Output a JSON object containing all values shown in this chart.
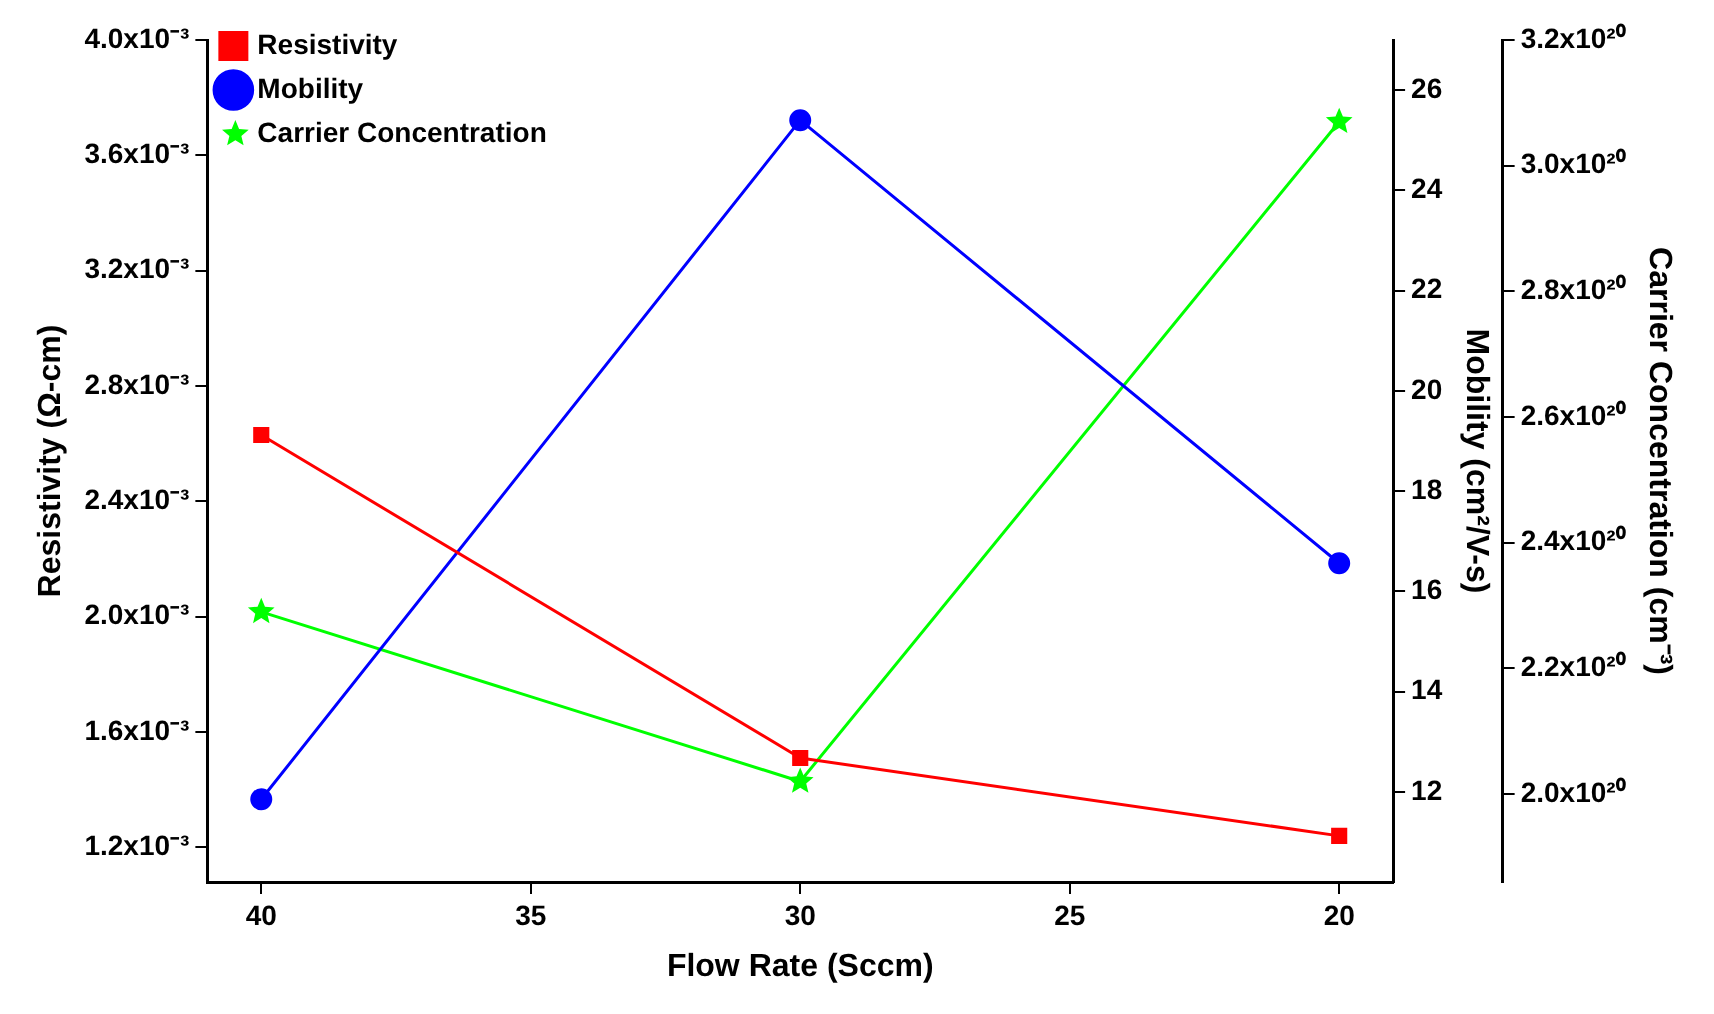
{
  "chart_data": {
    "type": "line",
    "xlabel": "Flow Rate (Sccm)",
    "ylabel": "Resistivity (Ω-cm)",
    "y2label": "Mobility (cm²/V-s)",
    "y3label": "Carrier Concentration (cm⁻³)",
    "x": [
      40,
      30,
      20
    ],
    "series": [
      {
        "name": "Resistivity",
        "color": "#ff0000",
        "marker": "square",
        "values": [
          0.00263,
          0.00151,
          0.00124
        ]
      },
      {
        "name": "Mobility",
        "color": "#0000ff",
        "marker": "circle",
        "axis": "y2",
        "values": [
          11.85,
          25.4,
          16.56
        ]
      },
      {
        "name": "Carrier Concentration",
        "color": "#00ff00",
        "marker": "star",
        "axis": "y3",
        "values": [
          2.29e+20,
          2.02e+20,
          3.07e+20
        ]
      }
    ],
    "xlim": [
      41,
      19
    ],
    "xticks": [
      40,
      35,
      30,
      25,
      20
    ],
    "ylim": [
      0.00108,
      0.004
    ],
    "yticks": [
      {
        "value": 0.0012,
        "label": "1.2x10⁻³"
      },
      {
        "value": 0.0016,
        "label": "1.6x10⁻³"
      },
      {
        "value": 0.002,
        "label": "2.0x10⁻³"
      },
      {
        "value": 0.0024,
        "label": "2.4x10⁻³"
      },
      {
        "value": 0.0028,
        "label": "2.8x10⁻³"
      },
      {
        "value": 0.0032,
        "label": "3.2x10⁻³"
      },
      {
        "value": 0.0036,
        "label": "3.6x10⁻³"
      },
      {
        "value": 0.004,
        "label": "4.0x10⁻³"
      }
    ],
    "y2lim": [
      10.2,
      27.0
    ],
    "y2ticks": [
      12,
      14,
      16,
      18,
      20,
      22,
      24,
      26
    ],
    "y3lim": [
      1.86e+20,
      3.2e+20
    ],
    "y3ticks": [
      {
        "value": 2e+20,
        "label": "2.0x10²⁰"
      },
      {
        "value": 2.2e+20,
        "label": "2.2x10²⁰"
      },
      {
        "value": 2.4e+20,
        "label": "2.4x10²⁰"
      },
      {
        "value": 2.6e+20,
        "label": "2.6x10²⁰"
      },
      {
        "value": 2.8e+20,
        "label": "2.8x10²⁰"
      },
      {
        "value": 3e+20,
        "label": "3.0x10²⁰"
      },
      {
        "value": 3.2e+20,
        "label": "3.2x10²⁰"
      }
    ],
    "grid": false,
    "legend": "top left",
    "line_style": "solid"
  }
}
